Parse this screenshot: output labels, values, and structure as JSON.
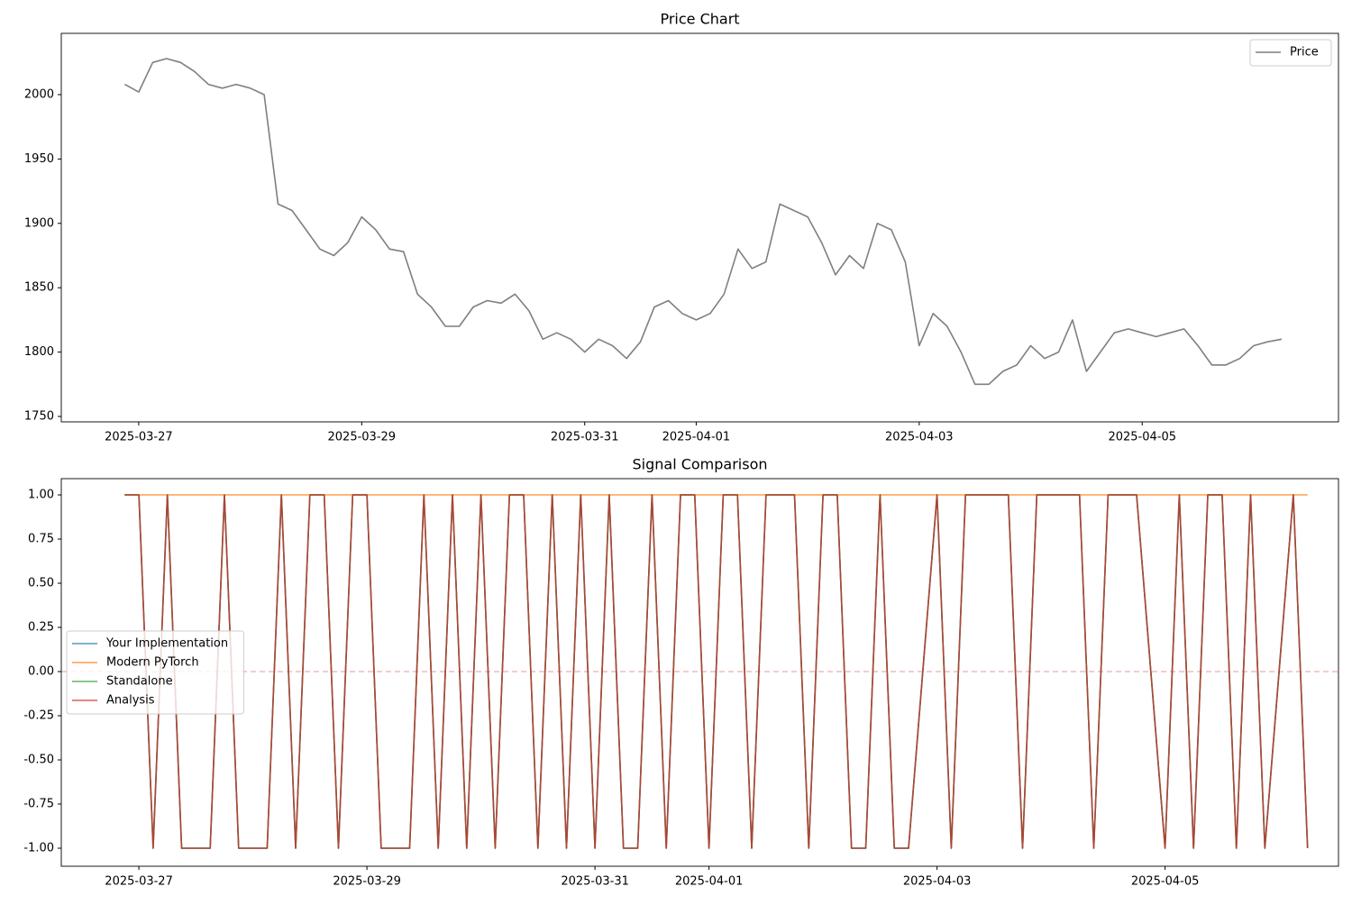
{
  "chart_data": [
    {
      "type": "line",
      "title": "Price Chart",
      "x": [
        "2025-03-26T21:00",
        "2025-03-27T00:00",
        "2025-03-27T03:00",
        "2025-03-27T06:00",
        "2025-03-27T09:00",
        "2025-03-27T12:00",
        "2025-03-27T15:00",
        "2025-03-27T18:00",
        "2025-03-27T21:00",
        "2025-03-28T00:00",
        "2025-03-28T03:00",
        "2025-03-28T06:00",
        "2025-03-28T09:00",
        "2025-03-28T12:00",
        "2025-03-28T15:00",
        "2025-03-28T18:00",
        "2025-03-28T21:00",
        "2025-03-29T00:00",
        "2025-03-29T03:00",
        "2025-03-29T06:00",
        "2025-03-29T09:00",
        "2025-03-29T12:00",
        "2025-03-29T15:00",
        "2025-03-29T18:00",
        "2025-03-29T21:00",
        "2025-03-30T00:00",
        "2025-03-30T03:00",
        "2025-03-30T06:00",
        "2025-03-30T09:00",
        "2025-03-30T12:00",
        "2025-03-30T15:00",
        "2025-03-30T18:00",
        "2025-03-30T21:00",
        "2025-03-31T00:00",
        "2025-03-31T03:00",
        "2025-03-31T06:00",
        "2025-03-31T09:00",
        "2025-03-31T12:00",
        "2025-03-31T15:00",
        "2025-03-31T18:00",
        "2025-03-31T21:00",
        "2025-04-01T00:00",
        "2025-04-01T03:00",
        "2025-04-01T06:00",
        "2025-04-01T09:00",
        "2025-04-01T12:00",
        "2025-04-01T15:00",
        "2025-04-01T18:00",
        "2025-04-01T21:00",
        "2025-04-02T00:00",
        "2025-04-02T03:00",
        "2025-04-02T06:00",
        "2025-04-02T09:00",
        "2025-04-02T12:00",
        "2025-04-02T15:00",
        "2025-04-02T18:00",
        "2025-04-02T21:00",
        "2025-04-03T00:00",
        "2025-04-03T03:00",
        "2025-04-03T06:00",
        "2025-04-03T09:00",
        "2025-04-03T12:00",
        "2025-04-03T15:00",
        "2025-04-03T18:00",
        "2025-04-03T21:00",
        "2025-04-04T00:00",
        "2025-04-04T03:00",
        "2025-04-04T06:00",
        "2025-04-04T09:00",
        "2025-04-04T12:00",
        "2025-04-04T15:00",
        "2025-04-04T18:00",
        "2025-04-04T21:00",
        "2025-04-05T00:00",
        "2025-04-05T03:00",
        "2025-04-05T06:00",
        "2025-04-05T09:00",
        "2025-04-05T12:00",
        "2025-04-05T15:00",
        "2025-04-05T18:00",
        "2025-04-05T21:00",
        "2025-04-06T00:00",
        "2025-04-06T03:00",
        "2025-04-06T06:00"
      ],
      "series": [
        {
          "name": "Price",
          "color": "#7f7f7f",
          "values": [
            2008,
            2002,
            2025,
            2028,
            2025,
            2018,
            2008,
            2005,
            2008,
            2005,
            2000,
            1915,
            1910,
            1895,
            1880,
            1875,
            1885,
            1905,
            1895,
            1880,
            1878,
            1845,
            1835,
            1820,
            1820,
            1835,
            1840,
            1838,
            1845,
            1832,
            1810,
            1815,
            1810,
            1800,
            1810,
            1805,
            1795,
            1808,
            1835,
            1840,
            1830,
            1825,
            1830,
            1845,
            1880,
            1865,
            1870,
            1915,
            1910,
            1905,
            1885,
            1860,
            1875,
            1865,
            1900,
            1895,
            1870,
            1805,
            1830,
            1820,
            1800,
            1775,
            1775,
            1785,
            1790,
            1805,
            1795,
            1800,
            1825,
            1785,
            1800,
            1815,
            1818,
            1815,
            1812,
            1815,
            1818,
            1805,
            1790,
            1790,
            1795,
            1805,
            1808,
            1810
          ]
        }
      ],
      "xlim": [
        "2025-03-26T07:20",
        "2025-04-06T18:15"
      ],
      "xticks": [
        "2025-03-27",
        "2025-03-29",
        "2025-03-31",
        "2025-04-01",
        "2025-04-03",
        "2025-04-05"
      ],
      "ylim": [
        1745.8,
        2047.6
      ],
      "yticks": [
        1750,
        1800,
        1850,
        1900,
        1950,
        2000
      ],
      "legend": "upper right"
    },
    {
      "type": "line",
      "title": "Signal Comparison",
      "x": [
        "2025-03-26T21:00",
        "2025-03-27T00:00",
        "2025-03-27T03:00",
        "2025-03-27T06:00",
        "2025-03-27T09:00",
        "2025-03-27T12:00",
        "2025-03-27T15:00",
        "2025-03-27T18:00",
        "2025-03-27T21:00",
        "2025-03-28T00:00",
        "2025-03-28T03:00",
        "2025-03-28T06:00",
        "2025-03-28T09:00",
        "2025-03-28T12:00",
        "2025-03-28T15:00",
        "2025-03-28T18:00",
        "2025-03-28T21:00",
        "2025-03-29T00:00",
        "2025-03-29T03:00",
        "2025-03-29T06:00",
        "2025-03-29T09:00",
        "2025-03-29T12:00",
        "2025-03-29T15:00",
        "2025-03-29T18:00",
        "2025-03-29T21:00",
        "2025-03-30T00:00",
        "2025-03-30T03:00",
        "2025-03-30T06:00",
        "2025-03-30T09:00",
        "2025-03-30T12:00",
        "2025-03-30T15:00",
        "2025-03-30T18:00",
        "2025-03-30T21:00",
        "2025-03-31T00:00",
        "2025-03-31T03:00",
        "2025-03-31T06:00",
        "2025-03-31T09:00",
        "2025-03-31T12:00",
        "2025-03-31T15:00",
        "2025-03-31T18:00",
        "2025-03-31T21:00",
        "2025-04-01T00:00",
        "2025-04-01T03:00",
        "2025-04-01T06:00",
        "2025-04-01T09:00",
        "2025-04-01T12:00",
        "2025-04-01T15:00",
        "2025-04-01T18:00",
        "2025-04-01T21:00",
        "2025-04-02T00:00",
        "2025-04-02T03:00",
        "2025-04-02T06:00",
        "2025-04-02T09:00",
        "2025-04-02T12:00",
        "2025-04-02T15:00",
        "2025-04-02T18:00",
        "2025-04-02T21:00",
        "2025-04-03T00:00",
        "2025-04-03T03:00",
        "2025-04-03T06:00",
        "2025-04-03T09:00",
        "2025-04-03T12:00",
        "2025-04-03T15:00",
        "2025-04-03T18:00",
        "2025-04-03T21:00",
        "2025-04-04T00:00",
        "2025-04-04T03:00",
        "2025-04-04T06:00",
        "2025-04-04T09:00",
        "2025-04-04T12:00",
        "2025-04-04T15:00",
        "2025-04-04T18:00",
        "2025-04-04T21:00",
        "2025-04-05T00:00",
        "2025-04-05T03:00",
        "2025-04-05T06:00",
        "2025-04-05T09:00",
        "2025-04-05T12:00",
        "2025-04-05T15:00",
        "2025-04-05T18:00",
        "2025-04-05T21:00",
        "2025-04-06T00:00",
        "2025-04-06T03:00",
        "2025-04-06T06:00"
      ],
      "series": [
        {
          "name": "Your Implementation",
          "color": "#1f77b4",
          "values": [
            1,
            1,
            -1,
            1,
            -1,
            -1,
            -1,
            1,
            -1,
            -1,
            -1,
            1,
            -1,
            1,
            1,
            -1,
            1,
            1,
            -1,
            -1,
            -1,
            1,
            -1,
            1,
            -1,
            1,
            -1,
            1,
            1,
            -1,
            1,
            -1,
            1,
            -1,
            1,
            -1,
            -1,
            1,
            -1,
            1,
            1,
            -1,
            1,
            1,
            -1,
            1,
            1,
            1,
            -1,
            1,
            1,
            -1,
            -1,
            1,
            -1,
            -1,
            0,
            1,
            -1,
            1,
            1,
            1,
            1,
            -1,
            1,
            1,
            1,
            1,
            -1,
            1,
            1,
            1,
            0,
            -1,
            1,
            -1,
            1,
            1,
            -1,
            1,
            -1,
            0,
            1,
            -1
          ]
        },
        {
          "name": "Modern PyTorch",
          "color": "#ff7f0e",
          "values": [
            1,
            1,
            1,
            1,
            1,
            1,
            1,
            1,
            1,
            1,
            1,
            1,
            1,
            1,
            1,
            1,
            1,
            1,
            1,
            1,
            1,
            1,
            1,
            1,
            1,
            1,
            1,
            1,
            1,
            1,
            1,
            1,
            1,
            1,
            1,
            1,
            1,
            1,
            1,
            1,
            1,
            1,
            1,
            1,
            1,
            1,
            1,
            1,
            1,
            1,
            1,
            1,
            1,
            1,
            1,
            1,
            1,
            1,
            1,
            1,
            1,
            1,
            1,
            1,
            1,
            1,
            1,
            1,
            1,
            1,
            1,
            1,
            1,
            1,
            1,
            1,
            1,
            1,
            1,
            1,
            1,
            1,
            1,
            1
          ]
        },
        {
          "name": "Standalone",
          "color": "#2ca02c",
          "values": [
            1,
            1,
            -1,
            1,
            -1,
            -1,
            -1,
            1,
            -1,
            -1,
            -1,
            1,
            -1,
            1,
            1,
            -1,
            1,
            1,
            -1,
            -1,
            -1,
            1,
            -1,
            1,
            -1,
            1,
            -1,
            1,
            1,
            -1,
            1,
            -1,
            1,
            -1,
            1,
            -1,
            -1,
            1,
            -1,
            1,
            1,
            -1,
            1,
            1,
            -1,
            1,
            1,
            1,
            -1,
            1,
            1,
            -1,
            -1,
            1,
            -1,
            -1,
            0,
            1,
            -1,
            1,
            1,
            1,
            1,
            -1,
            1,
            1,
            1,
            1,
            -1,
            1,
            1,
            1,
            0,
            -1,
            1,
            -1,
            1,
            1,
            -1,
            1,
            -1,
            0,
            1,
            -1
          ]
        },
        {
          "name": "Analysis",
          "color": "#d62728",
          "values": [
            1,
            1,
            -1,
            1,
            -1,
            -1,
            -1,
            1,
            -1,
            -1,
            -1,
            1,
            -1,
            1,
            1,
            -1,
            1,
            1,
            -1,
            -1,
            -1,
            1,
            -1,
            1,
            -1,
            1,
            -1,
            1,
            1,
            -1,
            1,
            -1,
            1,
            -1,
            1,
            -1,
            -1,
            1,
            -1,
            1,
            1,
            -1,
            1,
            1,
            -1,
            1,
            1,
            1,
            -1,
            1,
            1,
            -1,
            -1,
            1,
            -1,
            -1,
            0,
            1,
            -1,
            1,
            1,
            1,
            1,
            -1,
            1,
            1,
            1,
            1,
            -1,
            1,
            1,
            1,
            0,
            -1,
            1,
            -1,
            1,
            1,
            -1,
            1,
            -1,
            0,
            1,
            -1
          ]
        }
      ],
      "xlim": [
        "2025-03-26T07:40",
        "2025-04-06T12:30"
      ],
      "xticks": [
        "2025-03-27",
        "2025-03-29",
        "2025-03-31",
        "2025-04-01",
        "2025-04-03",
        "2025-04-05"
      ],
      "ylim": [
        -1.102,
        1.092
      ],
      "yticks": [
        {
          "value": -1,
          "label": "-1.00"
        },
        {
          "value": -0.75,
          "label": "-0.75"
        },
        {
          "value": -0.5,
          "label": "-0.50"
        },
        {
          "value": -0.25,
          "label": "-0.25"
        },
        {
          "value": 0,
          "label": "0.00"
        },
        {
          "value": 0.25,
          "label": "0.25"
        },
        {
          "value": 0.5,
          "label": "0.50"
        },
        {
          "value": 0.75,
          "label": "0.75"
        },
        {
          "value": 1,
          "label": "1.00"
        }
      ],
      "hline": {
        "value": 0,
        "color": "#d62728"
      },
      "legend": "center left"
    }
  ]
}
